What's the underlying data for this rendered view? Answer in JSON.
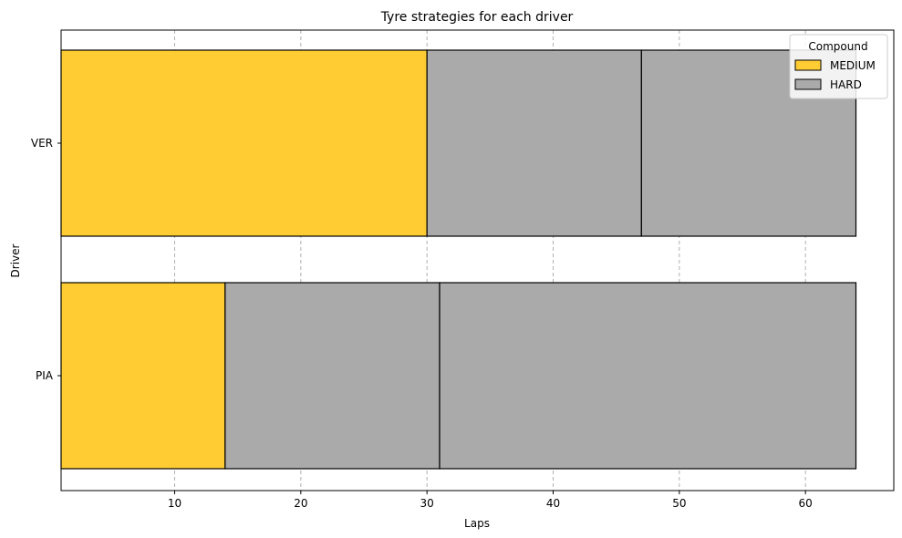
{
  "chart_data": {
    "type": "bar",
    "orientation": "horizontal-stacked",
    "title": "Tyre strategies for each driver",
    "xlabel": "Laps",
    "ylabel": "Driver",
    "xlim": [
      1,
      67
    ],
    "xticks": [
      10,
      20,
      30,
      40,
      50,
      60
    ],
    "grid": "x-dashed",
    "legend": {
      "title": "Compound",
      "placement": "top-right",
      "entries": [
        {
          "label": "MEDIUM",
          "color": "#ffcc33"
        },
        {
          "label": "HARD",
          "color": "#aaaaaa"
        }
      ]
    },
    "drivers": [
      "VER",
      "PIA"
    ],
    "stints": [
      {
        "driver": "VER",
        "compound": "MEDIUM",
        "start": 1,
        "end": 30
      },
      {
        "driver": "VER",
        "compound": "HARD",
        "start": 30,
        "end": 47
      },
      {
        "driver": "VER",
        "compound": "HARD",
        "start": 47,
        "end": 64
      },
      {
        "driver": "PIA",
        "compound": "MEDIUM",
        "start": 1,
        "end": 14
      },
      {
        "driver": "PIA",
        "compound": "HARD",
        "start": 14,
        "end": 31
      },
      {
        "driver": "PIA",
        "compound": "HARD",
        "start": 31,
        "end": 64
      }
    ]
  }
}
